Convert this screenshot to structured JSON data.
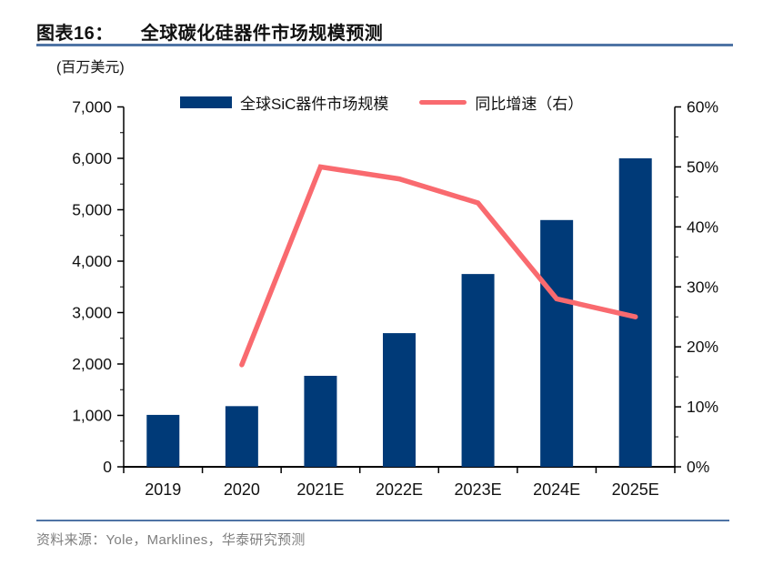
{
  "header": {
    "figure_label": "图表16：",
    "title": "全球碳化硅器件市场规模预测"
  },
  "unit_label": "(百万美元)",
  "legend": {
    "bar_label": "全球SiC器件市场规模",
    "line_label": "同比增速（右）"
  },
  "source_text": "资料来源：Yole，Marklines，华泰研究预测",
  "colors": {
    "bar": "#003a78",
    "line": "#f96a6f",
    "rule": "#4f74a5",
    "axis": "#000000",
    "source_text": "#7f7f7f"
  },
  "chart_data": {
    "type": "bar",
    "subtype": "bar-line-combo",
    "title": "全球碳化硅器件市场规模预测",
    "categories": [
      "2019",
      "2020",
      "2021E",
      "2022E",
      "2023E",
      "2024E",
      "2025E"
    ],
    "series": [
      {
        "name": "全球SiC器件市场规模",
        "type": "bar",
        "axis": "left",
        "unit": "百万美元",
        "values": [
          1010,
          1180,
          1770,
          2600,
          3750,
          4800,
          6000
        ]
      },
      {
        "name": "同比增速（右）",
        "type": "line",
        "axis": "right",
        "unit": "%",
        "values": [
          null,
          17,
          50,
          48,
          44,
          28,
          25
        ]
      }
    ],
    "left_axis": {
      "title": "(百万美元)",
      "min": 0,
      "max": 7000,
      "major_step": 1000,
      "minor_step": 500,
      "tick_labels": [
        "0",
        "1,000",
        "2,000",
        "3,000",
        "4,000",
        "5,000",
        "6,000",
        "7,000"
      ]
    },
    "right_axis": {
      "min": 0,
      "max": 60,
      "major_step": 10,
      "minor_step": 5,
      "tick_labels": [
        "0%",
        "10%",
        "20%",
        "30%",
        "40%",
        "50%",
        "60%"
      ]
    },
    "legend_position": "top",
    "grid": false
  }
}
